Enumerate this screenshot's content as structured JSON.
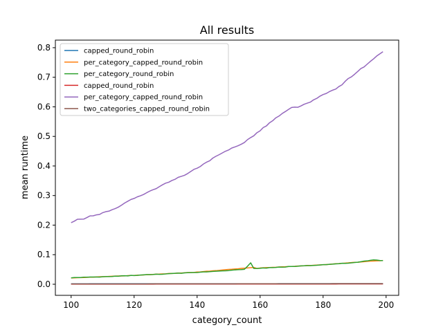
{
  "chart_data": {
    "type": "line",
    "title": "All results",
    "xlabel": "category_count",
    "ylabel": "mean runtime",
    "xlim": [
      95,
      204
    ],
    "ylim": [
      -0.0375,
      0.8256
    ],
    "x_ticks": [
      100,
      120,
      140,
      160,
      180,
      200
    ],
    "y_ticks": [
      0.0,
      0.1,
      0.2,
      0.3,
      0.4,
      0.5,
      0.6,
      0.7,
      0.8
    ],
    "x_tick_labels": [
      "100",
      "120",
      "140",
      "160",
      "180",
      "200"
    ],
    "y_tick_labels": [
      "0.0",
      "0.1",
      "0.2",
      "0.3",
      "0.4",
      "0.5",
      "0.6",
      "0.7",
      "0.8"
    ],
    "grid": false,
    "legend_position": "upper-left",
    "x_range": [
      100,
      199
    ],
    "series": [
      {
        "name": "capped_round_robin",
        "color": "#1f77b4",
        "points": [
          [
            100,
            0.0015
          ],
          [
            199,
            0.002
          ]
        ]
      },
      {
        "name": "per_category_capped_round_robin",
        "color": "#ff7f0e",
        "points": [
          [
            100,
            0.021
          ],
          [
            120,
            0.03
          ],
          [
            140,
            0.041
          ],
          [
            158,
            0.057
          ],
          [
            159,
            0.053
          ],
          [
            160,
            0.055
          ],
          [
            180,
            0.066
          ],
          [
            190,
            0.074
          ],
          [
            196,
            0.079
          ],
          [
            199,
            0.08
          ]
        ]
      },
      {
        "name": "per_category_round_robin",
        "color": "#2ca02c",
        "points": [
          [
            100,
            0.022
          ],
          [
            110,
            0.025
          ],
          [
            120,
            0.03
          ],
          [
            130,
            0.035
          ],
          [
            140,
            0.04
          ],
          [
            150,
            0.047
          ],
          [
            155,
            0.05
          ],
          [
            157,
            0.073
          ],
          [
            158,
            0.053
          ],
          [
            160,
            0.054
          ],
          [
            170,
            0.06
          ],
          [
            180,
            0.066
          ],
          [
            190,
            0.073
          ],
          [
            196,
            0.082
          ],
          [
            199,
            0.08
          ]
        ]
      },
      {
        "name": "capped_round_robin",
        "color": "#d62728",
        "points": [
          [
            100,
            0.0005
          ],
          [
            150,
            0.0008
          ],
          [
            199,
            0.001
          ]
        ]
      },
      {
        "name": "per_category_capped_round_robin",
        "color": "#9467bd",
        "points": [
          [
            100,
            0.208
          ],
          [
            102,
            0.218
          ],
          [
            104,
            0.22
          ],
          [
            106,
            0.23
          ],
          [
            110,
            0.24
          ],
          [
            115,
            0.262
          ],
          [
            120,
            0.291
          ],
          [
            125,
            0.315
          ],
          [
            130,
            0.34
          ],
          [
            135,
            0.365
          ],
          [
            140,
            0.392
          ],
          [
            145,
            0.425
          ],
          [
            150,
            0.455
          ],
          [
            155,
            0.48
          ],
          [
            160,
            0.52
          ],
          [
            165,
            0.562
          ],
          [
            170,
            0.597
          ],
          [
            172,
            0.6
          ],
          [
            175,
            0.611
          ],
          [
            180,
            0.64
          ],
          [
            185,
            0.667
          ],
          [
            190,
            0.712
          ],
          [
            195,
            0.752
          ],
          [
            199,
            0.788
          ]
        ]
      },
      {
        "name": "two_categories_capped_round_robin",
        "color": "#8c564b",
        "points": [
          [
            100,
            0.001
          ],
          [
            150,
            0.0015
          ],
          [
            199,
            0.002
          ]
        ]
      }
    ]
  }
}
